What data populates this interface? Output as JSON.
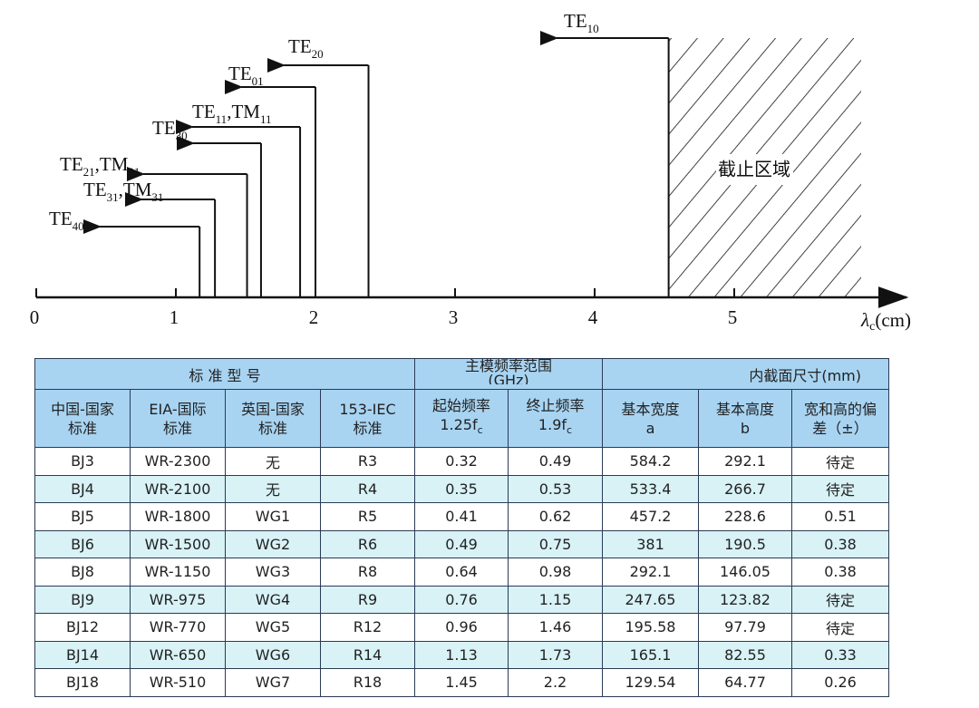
{
  "diagram": {
    "axis": {
      "ticks": [
        0,
        1,
        2,
        3,
        4,
        5
      ],
      "label": {
        "symbol": "λ",
        "sub": "c",
        "unit": "(cm)"
      }
    },
    "cutoff_region_label": "截止区域",
    "modes": [
      {
        "label": [
          {
            "t": "TE",
            "sub": "10"
          }
        ],
        "cutoff": 4.53
      },
      {
        "label": [
          {
            "t": "TE",
            "sub": "20"
          }
        ],
        "cutoff": 2.38
      },
      {
        "label": [
          {
            "t": "TE",
            "sub": "01"
          }
        ],
        "cutoff": 2.0
      },
      {
        "label": [
          {
            "t": "TE",
            "sub": "11"
          },
          {
            "t": ",TM",
            "sub": "11"
          }
        ],
        "cutoff": 1.89
      },
      {
        "label": [
          {
            "t": "TE",
            "sub": "30"
          }
        ],
        "cutoff": 1.61
      },
      {
        "label": [
          {
            "t": "TE",
            "sub": "21"
          },
          {
            "t": ",TM",
            "sub": "21"
          }
        ],
        "cutoff": 1.51
      },
      {
        "label": [
          {
            "t": "TE",
            "sub": "31"
          },
          {
            "t": ",TM",
            "sub": "31"
          }
        ],
        "cutoff": 1.28
      },
      {
        "label": [
          {
            "t": "TE",
            "sub": "40"
          }
        ],
        "cutoff": 1.17
      }
    ]
  },
  "table": {
    "group_headers": [
      "标 准 型 号",
      "主模频率范围",
      "(GHz)",
      "内截面尺寸(mm)"
    ],
    "sub_headers": [
      {
        "lines": [
          "中国-国家",
          "标准"
        ]
      },
      {
        "lines": [
          "EIA-国际",
          "标准"
        ]
      },
      {
        "lines": [
          "英国-国家",
          "标准"
        ]
      },
      {
        "lines": [
          "153-IEC",
          "标准"
        ]
      },
      {
        "lines": [
          "起始频率",
          "1.25f"
        ],
        "sub": "c"
      },
      {
        "lines": [
          "终止频率",
          "1.9f"
        ],
        "sub": "c"
      },
      {
        "lines": [
          "基本宽度",
          "a"
        ]
      },
      {
        "lines": [
          "基本高度",
          "b"
        ]
      },
      {
        "lines": [
          "宽和高的偏",
          "差（±）"
        ]
      }
    ],
    "rows": [
      [
        "BJ3",
        "WR-2300",
        "无",
        "R3",
        "0.32",
        "0.49",
        "584.2",
        "292.1",
        "待定"
      ],
      [
        "BJ4",
        "WR-2100",
        "无",
        "R4",
        "0.35",
        "0.53",
        "533.4",
        "266.7",
        "待定"
      ],
      [
        "BJ5",
        "WR-1800",
        "WG1",
        "R5",
        "0.41",
        "0.62",
        "457.2",
        "228.6",
        "0.51"
      ],
      [
        "BJ6",
        "WR-1500",
        "WG2",
        "R6",
        "0.49",
        "0.75",
        "381",
        "190.5",
        "0.38"
      ],
      [
        "BJ8",
        "WR-1150",
        "WG3",
        "R8",
        "0.64",
        "0.98",
        "292.1",
        "146.05",
        "0.38"
      ],
      [
        "BJ9",
        "WR-975",
        "WG4",
        "R9",
        "0.76",
        "1.15",
        "247.65",
        "123.82",
        "待定"
      ],
      [
        "BJ12",
        "WR-770",
        "WG5",
        "R12",
        "0.96",
        "1.46",
        "195.58",
        "97.79",
        "待定"
      ],
      [
        "BJ14",
        "WR-650",
        "WG6",
        "R14",
        "1.13",
        "1.73",
        "165.1",
        "82.55",
        "0.33"
      ],
      [
        "BJ18",
        "WR-510",
        "WG7",
        "R18",
        "1.45",
        "2.2",
        "129.54",
        "64.77",
        "0.26"
      ]
    ]
  }
}
